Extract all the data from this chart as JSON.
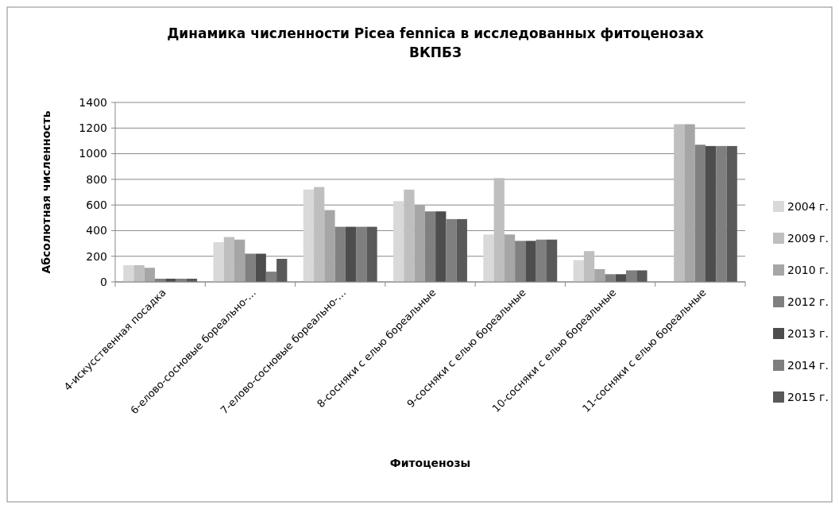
{
  "chart_data": {
    "type": "bar",
    "title": "Динамика численности Picea fennica в исследованных фитоценозах ВКПБЗ",
    "xlabel": "Фитоценозы",
    "ylabel": "Абсолютная численность",
    "categories": [
      "4-искусственная посадка",
      "6-елово-сосновые бореально-…",
      "7-елово-сосновые бореально-…",
      "8-сосняки с елью бореальные",
      "9-сосняки с елью бореальные",
      "10-сосняки с елью бореальные",
      "11-сосняки с елью бореальные"
    ],
    "series": [
      {
        "name": "2004 г.",
        "color": "#d9d9d9",
        "values": [
          130,
          310,
          720,
          630,
          370,
          170,
          0
        ]
      },
      {
        "name": "2009 г.",
        "color": "#bfbfbf",
        "values": [
          130,
          350,
          740,
          720,
          810,
          240,
          1230
        ]
      },
      {
        "name": "2010 г.",
        "color": "#a6a6a6",
        "values": [
          110,
          330,
          560,
          600,
          370,
          100,
          1230
        ]
      },
      {
        "name": "2012 г.",
        "color": "#808080",
        "values": [
          25,
          220,
          430,
          550,
          320,
          60,
          1070
        ]
      },
      {
        "name": "2013 г.",
        "color": "#4d4d4d",
        "values": [
          25,
          220,
          430,
          550,
          320,
          60,
          1060
        ]
      },
      {
        "name": "2014 г.",
        "color": "#7f7f7f",
        "values": [
          25,
          80,
          430,
          490,
          330,
          90,
          1060
        ]
      },
      {
        "name": "2015 г.",
        "color": "#595959",
        "values": [
          25,
          180,
          430,
          490,
          330,
          90,
          1060
        ]
      }
    ],
    "ylim": [
      0,
      1400
    ],
    "yticks": [
      0,
      200,
      400,
      600,
      800,
      1000,
      1200,
      1400
    ],
    "grid": "y",
    "legend": "right"
  }
}
